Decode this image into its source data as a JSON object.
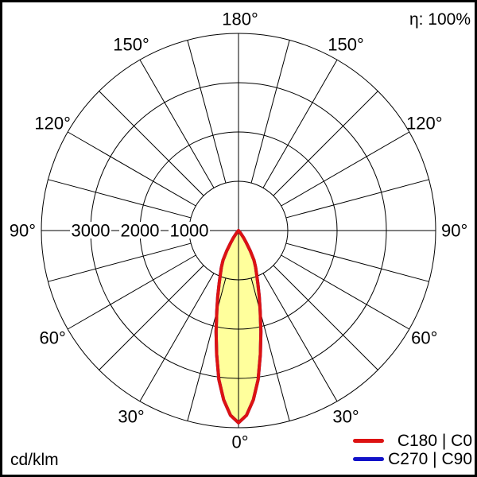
{
  "eta_label": "η: 100%",
  "unit_label": "cd/klm",
  "legend": [
    {
      "label": "C180 | C0",
      "color": "#dd1212"
    },
    {
      "label": "C270 | C90",
      "color": "#1212c8"
    }
  ],
  "chart_data": {
    "type": "polar",
    "subtype": "luminous-intensity-distribution",
    "unit": "cd/klm",
    "efficiency_label": "η: 100%",
    "radial_axis": {
      "max": 4000,
      "ring_step": 1000,
      "labeled_rings": [
        3000,
        2000,
        1000
      ]
    },
    "angular_axis": {
      "grid_step_deg": 15,
      "label_step_deg": 30,
      "zero_at": "bottom",
      "labels": [
        "180°",
        "150°",
        "120°",
        "90°",
        "60°",
        "30°",
        "0°"
      ]
    },
    "series": [
      {
        "name": "C180 | C0",
        "color": "#dd1212",
        "fill": "#ffff9c",
        "symmetric_mirror": true,
        "gamma_deg": [
          0,
          2.5,
          5,
          7.5,
          10,
          12.5,
          15,
          17.5,
          20,
          22.5,
          25,
          27.5,
          30,
          32.5,
          35,
          37.5,
          40,
          42.5,
          45
        ],
        "cd_per_klm": [
          3900,
          3750,
          3450,
          3050,
          2550,
          2100,
          1700,
          1400,
          1150,
          960,
          820,
          680,
          480,
          300,
          180,
          90,
          30,
          5,
          0
        ]
      },
      {
        "name": "C270 | C90",
        "color": "#1212c8",
        "fill": "none",
        "symmetric_mirror": true,
        "gamma_deg": [
          0,
          2.5,
          5,
          7.5,
          10,
          12.5,
          15,
          17.5,
          20,
          22.5,
          25,
          27.5,
          30,
          32.5,
          35,
          37.5,
          40,
          42.5,
          45
        ],
        "cd_per_klm": [
          3900,
          3750,
          3450,
          3050,
          2550,
          2100,
          1700,
          1400,
          1150,
          960,
          820,
          680,
          480,
          300,
          180,
          90,
          30,
          5,
          0
        ]
      }
    ]
  }
}
